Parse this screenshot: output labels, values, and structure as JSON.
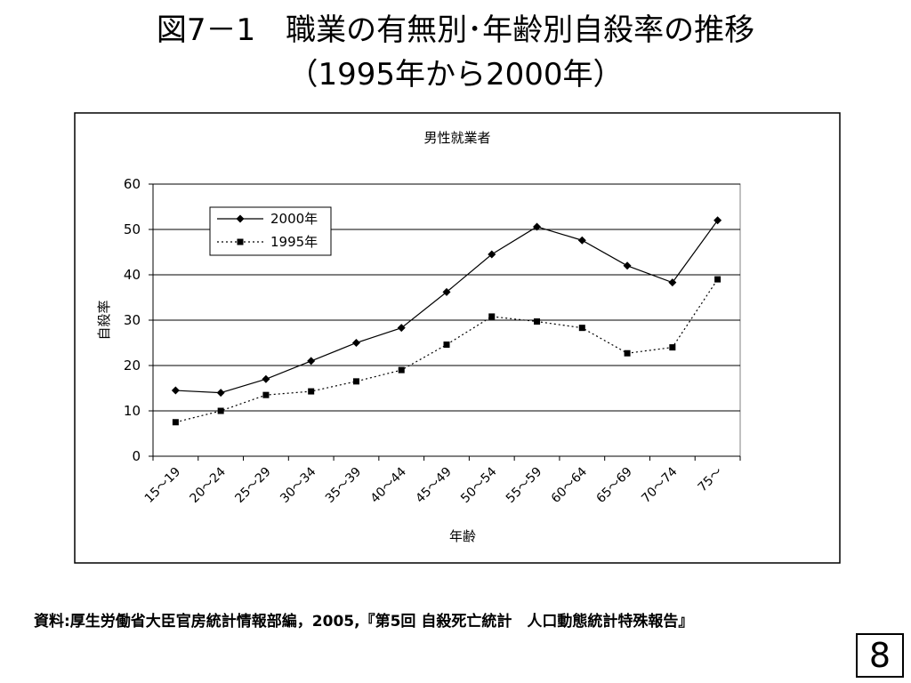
{
  "slide": {
    "title_line1": "図7－1　職業の有無別･年齢別自殺率の推移",
    "title_line2": "（1995年から2000年）",
    "source": "資料:厚生労働省大臣官房統計情報部編，2005,『第5回 自殺死亡統計　人口動態統計特殊報告』",
    "page_number": "8"
  },
  "chart_data": {
    "type": "line",
    "title": "男性就業者",
    "xlabel": "年齢",
    "ylabel": "自殺率",
    "ylim": [
      0,
      60
    ],
    "yticks": [
      0,
      10,
      20,
      30,
      40,
      50,
      60
    ],
    "grid": true,
    "legend_position": "top-left",
    "categories": [
      "15～19",
      "20～24",
      "25～29",
      "30～34",
      "35～39",
      "40～44",
      "45～49",
      "50～54",
      "55～59",
      "60～64",
      "65～69",
      "70～74",
      "75～"
    ],
    "series": [
      {
        "name": "2000年",
        "marker": "diamond",
        "line": "solid",
        "color": "#000000",
        "values": [
          14.5,
          14.0,
          17.0,
          21.0,
          25.0,
          28.3,
          36.2,
          44.5,
          50.6,
          47.6,
          42.0,
          38.3,
          52.0
        ]
      },
      {
        "name": "1995年",
        "marker": "square",
        "line": "dotted",
        "color": "#000000",
        "values": [
          7.5,
          10.0,
          13.5,
          14.3,
          16.5,
          19.0,
          24.6,
          30.8,
          29.7,
          28.3,
          22.7,
          24.0,
          39.0
        ]
      }
    ]
  }
}
